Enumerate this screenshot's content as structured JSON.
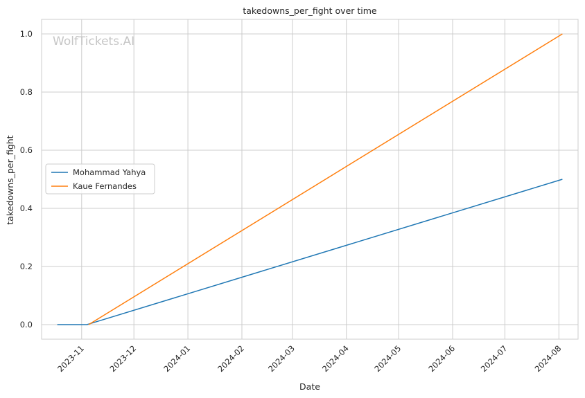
{
  "chart_data": {
    "type": "line",
    "title": "takedowns_per_fight over time",
    "xlabel": "Date",
    "ylabel": "takedowns_per_fight",
    "watermark": "WolfTickets.AI",
    "x_ticks": [
      "2023-11",
      "2023-12",
      "2024-01",
      "2024-02",
      "2024-03",
      "2024-04",
      "2024-05",
      "2024-06",
      "2024-07",
      "2024-08"
    ],
    "y_ticks": [
      "0.0",
      "0.2",
      "0.4",
      "0.6",
      "0.8",
      "1.0"
    ],
    "xlim": [
      "2023-10-09",
      "2024-08-12"
    ],
    "ylim": [
      -0.05,
      1.05
    ],
    "grid": true,
    "legend_position": "center-left",
    "series": [
      {
        "name": "Mohammad Yahya",
        "color": "#1f77b4",
        "points": [
          {
            "x": "2023-10-18",
            "y": 0.0
          },
          {
            "x": "2023-11-04",
            "y": 0.0
          },
          {
            "x": "2024-08-03",
            "y": 0.5
          }
        ]
      },
      {
        "name": "Kaue Fernandes",
        "color": "#ff7f0e",
        "points": [
          {
            "x": "2023-11-05",
            "y": 0.0
          },
          {
            "x": "2024-08-03",
            "y": 1.0
          }
        ]
      }
    ]
  }
}
